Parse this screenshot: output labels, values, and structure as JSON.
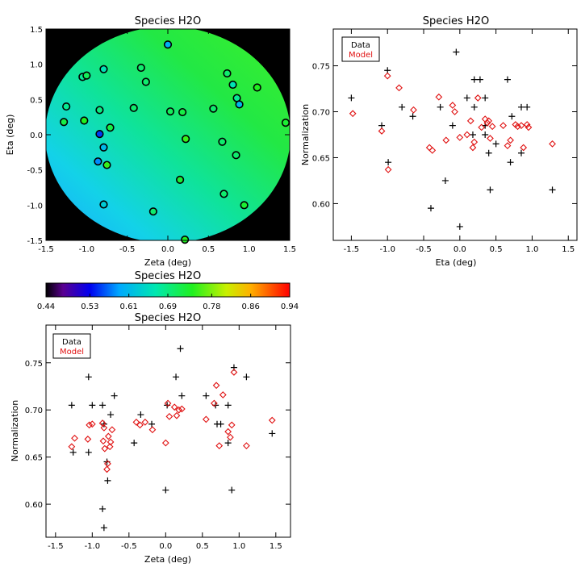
{
  "colors": {
    "data_marker": "#000000",
    "model_marker": "#e01010",
    "mask": "#000000"
  },
  "chart_data": [
    {
      "type": "scatter",
      "id": "map",
      "title": "Species H2O",
      "xlabel": "Zeta (deg)",
      "ylabel": "Eta (deg)",
      "xlim": [
        -1.5,
        1.5
      ],
      "ylim": [
        -1.5,
        1.5
      ],
      "xticks": [
        "-1.5",
        "-1.0",
        "-0.5",
        "0.0",
        "0.5",
        "1.0",
        "1.5"
      ],
      "yticks": [
        "-1.5",
        "-1.0",
        "-0.5",
        "0.0",
        "0.5",
        "1.0",
        "1.5"
      ],
      "background": "colormap gradient disk (model normalization) on black",
      "points": [
        {
          "zeta": 0.0,
          "eta": 1.28,
          "value": 0.6
        },
        {
          "zeta": -0.79,
          "eta": 0.93,
          "value": 0.66
        },
        {
          "zeta": -0.33,
          "eta": 0.95,
          "value": 0.7
        },
        {
          "zeta": -1.05,
          "eta": 0.82,
          "value": 0.68
        },
        {
          "zeta": -1.0,
          "eta": 0.84,
          "value": 0.71
        },
        {
          "zeta": -0.27,
          "eta": 0.75,
          "value": 0.7
        },
        {
          "zeta": 0.73,
          "eta": 0.87,
          "value": 0.7
        },
        {
          "zeta": 0.8,
          "eta": 0.71,
          "value": 0.66
        },
        {
          "zeta": 1.1,
          "eta": 0.67,
          "value": 0.74
        },
        {
          "zeta": 0.85,
          "eta": 0.52,
          "value": 0.68
        },
        {
          "zeta": 0.88,
          "eta": 0.43,
          "value": 0.61
        },
        {
          "zeta": -1.25,
          "eta": 0.4,
          "value": 0.68
        },
        {
          "zeta": -0.42,
          "eta": 0.38,
          "value": 0.7
        },
        {
          "zeta": -0.84,
          "eta": 0.35,
          "value": 0.69
        },
        {
          "zeta": 0.56,
          "eta": 0.37,
          "value": 0.7
        },
        {
          "zeta": 0.03,
          "eta": 0.33,
          "value": 0.71
        },
        {
          "zeta": 0.18,
          "eta": 0.32,
          "value": 0.72
        },
        {
          "zeta": -1.28,
          "eta": 0.18,
          "value": 0.72
        },
        {
          "zeta": -1.03,
          "eta": 0.2,
          "value": 0.74
        },
        {
          "zeta": -0.71,
          "eta": 0.1,
          "value": 0.72
        },
        {
          "zeta": 1.45,
          "eta": 0.17,
          "value": 0.73
        },
        {
          "zeta": -0.84,
          "eta": 0.01,
          "value": 0.55
        },
        {
          "zeta": 0.22,
          "eta": -0.06,
          "value": 0.75
        },
        {
          "zeta": 0.67,
          "eta": -0.1,
          "value": 0.7
        },
        {
          "zeta": -0.79,
          "eta": -0.18,
          "value": 0.61
        },
        {
          "zeta": 0.84,
          "eta": -0.29,
          "value": 0.7
        },
        {
          "zeta": -0.86,
          "eta": -0.38,
          "value": 0.58
        },
        {
          "zeta": -0.75,
          "eta": -0.43,
          "value": 0.75
        },
        {
          "zeta": 0.15,
          "eta": -0.64,
          "value": 0.73
        },
        {
          "zeta": 0.69,
          "eta": -0.84,
          "value": 0.7
        },
        {
          "zeta": -0.79,
          "eta": -0.99,
          "value": 0.63
        },
        {
          "zeta": 0.94,
          "eta": -1.0,
          "value": 0.73
        },
        {
          "zeta": -0.18,
          "eta": -1.09,
          "value": 0.7
        },
        {
          "zeta": 0.21,
          "eta": -1.49,
          "value": 0.74
        }
      ]
    },
    {
      "type": "scatter",
      "id": "eta",
      "title": "Species H2O",
      "xlabel": "Eta (deg)",
      "ylabel": "Normalization",
      "xlim": [
        -1.75,
        1.62
      ],
      "ylim": [
        0.56,
        0.79
      ],
      "xticks": [
        "-1.5",
        "-1.0",
        "-0.5",
        "0.0",
        "0.5",
        "1.0",
        "1.5"
      ],
      "yticks": [
        "0.60",
        "0.65",
        "0.70",
        "0.75"
      ],
      "legend": {
        "position": "top-left",
        "entries": [
          "Data",
          "Model"
        ]
      },
      "series": [
        {
          "name": "Data",
          "marker": "plus",
          "points": [
            [
              -1.5,
              0.715
            ],
            [
              -1.08,
              0.685
            ],
            [
              -1.0,
              0.745
            ],
            [
              -0.99,
              0.645
            ],
            [
              -0.8,
              0.705
            ],
            [
              -0.65,
              0.695
            ],
            [
              -0.4,
              0.595
            ],
            [
              -0.27,
              0.705
            ],
            [
              -0.2,
              0.625
            ],
            [
              -0.1,
              0.685
            ],
            [
              -0.05,
              0.765
            ],
            [
              0.0,
              0.575
            ],
            [
              0.1,
              0.715
            ],
            [
              0.18,
              0.675
            ],
            [
              0.2,
              0.735
            ],
            [
              0.2,
              0.705
            ],
            [
              0.28,
              0.735
            ],
            [
              0.35,
              0.715
            ],
            [
              0.35,
              0.685
            ],
            [
              0.35,
              0.675
            ],
            [
              0.4,
              0.655
            ],
            [
              0.42,
              0.615
            ],
            [
              0.5,
              0.665
            ],
            [
              0.66,
              0.735
            ],
            [
              0.7,
              0.645
            ],
            [
              0.72,
              0.695
            ],
            [
              0.85,
              0.655
            ],
            [
              0.85,
              0.705
            ],
            [
              0.93,
              0.705
            ],
            [
              1.28,
              0.615
            ]
          ]
        },
        {
          "name": "Model",
          "marker": "diamond",
          "points": [
            [
              -1.48,
              0.698
            ],
            [
              -1.08,
              0.679
            ],
            [
              -1.0,
              0.739
            ],
            [
              -0.99,
              0.637
            ],
            [
              -0.84,
              0.726
            ],
            [
              -0.64,
              0.702
            ],
            [
              -0.42,
              0.661
            ],
            [
              -0.38,
              0.658
            ],
            [
              -0.29,
              0.716
            ],
            [
              -0.19,
              0.669
            ],
            [
              -0.1,
              0.707
            ],
            [
              -0.07,
              0.7
            ],
            [
              0.0,
              0.672
            ],
            [
              0.1,
              0.675
            ],
            [
              0.15,
              0.69
            ],
            [
              0.18,
              0.661
            ],
            [
              0.2,
              0.667
            ],
            [
              0.25,
              0.715
            ],
            [
              0.3,
              0.683
            ],
            [
              0.35,
              0.692
            ],
            [
              0.38,
              0.688
            ],
            [
              0.4,
              0.69
            ],
            [
              0.42,
              0.671
            ],
            [
              0.45,
              0.684
            ],
            [
              0.6,
              0.685
            ],
            [
              0.66,
              0.663
            ],
            [
              0.7,
              0.669
            ],
            [
              0.77,
              0.686
            ],
            [
              0.8,
              0.684
            ],
            [
              0.85,
              0.685
            ],
            [
              0.88,
              0.661
            ],
            [
              0.93,
              0.686
            ],
            [
              0.95,
              0.683
            ],
            [
              1.28,
              0.665
            ]
          ]
        }
      ]
    },
    {
      "type": "scatter",
      "id": "zeta",
      "title": "Species H2O",
      "xlabel": "Zeta (deg)",
      "ylabel": "Normalization",
      "xlim": [
        -1.63,
        1.7
      ],
      "ylim": [
        0.565,
        0.79
      ],
      "xticks": [
        "-1.5",
        "-1.0",
        "-0.5",
        "0.0",
        "0.5",
        "1.0",
        "1.5"
      ],
      "yticks": [
        "0.60",
        "0.65",
        "0.70",
        "0.75"
      ],
      "legend": {
        "position": "top-left",
        "entries": [
          "Data",
          "Model"
        ]
      },
      "series": [
        {
          "name": "Data",
          "marker": "plus",
          "points": [
            [
              -1.28,
              0.705
            ],
            [
              -1.26,
              0.655
            ],
            [
              -1.05,
              0.735
            ],
            [
              -1.05,
              0.655
            ],
            [
              -1.0,
              0.705
            ],
            [
              -0.86,
              0.705
            ],
            [
              -0.86,
              0.595
            ],
            [
              -0.84,
              0.575
            ],
            [
              -0.84,
              0.685
            ],
            [
              -0.8,
              0.645
            ],
            [
              -0.79,
              0.625
            ],
            [
              -0.75,
              0.695
            ],
            [
              -0.7,
              0.715
            ],
            [
              -0.43,
              0.665
            ],
            [
              -0.34,
              0.695
            ],
            [
              -0.19,
              0.685
            ],
            [
              0.0,
              0.615
            ],
            [
              0.02,
              0.705
            ],
            [
              0.14,
              0.735
            ],
            [
              0.2,
              0.765
            ],
            [
              0.22,
              0.715
            ],
            [
              0.55,
              0.715
            ],
            [
              0.68,
              0.705
            ],
            [
              0.7,
              0.685
            ],
            [
              0.75,
              0.685
            ],
            [
              0.85,
              0.705
            ],
            [
              0.85,
              0.665
            ],
            [
              0.9,
              0.615
            ],
            [
              0.93,
              0.745
            ],
            [
              1.1,
              0.735
            ],
            [
              1.45,
              0.675
            ]
          ]
        },
        {
          "name": "Model",
          "marker": "diamond",
          "points": [
            [
              -1.28,
              0.661
            ],
            [
              -1.24,
              0.67
            ],
            [
              -1.06,
              0.669
            ],
            [
              -1.04,
              0.684
            ],
            [
              -1.0,
              0.685
            ],
            [
              -0.86,
              0.686
            ],
            [
              -0.85,
              0.667
            ],
            [
              -0.84,
              0.681
            ],
            [
              -0.83,
              0.659
            ],
            [
              -0.8,
              0.637
            ],
            [
              -0.79,
              0.643
            ],
            [
              -0.78,
              0.672
            ],
            [
              -0.76,
              0.661
            ],
            [
              -0.75,
              0.666
            ],
            [
              -0.73,
              0.679
            ],
            [
              -0.4,
              0.687
            ],
            [
              -0.35,
              0.684
            ],
            [
              -0.28,
              0.687
            ],
            [
              -0.18,
              0.679
            ],
            [
              0.0,
              0.665
            ],
            [
              0.05,
              0.693
            ],
            [
              0.03,
              0.707
            ],
            [
              0.12,
              0.703
            ],
            [
              0.15,
              0.694
            ],
            [
              0.18,
              0.7
            ],
            [
              0.22,
              0.701
            ],
            [
              0.55,
              0.69
            ],
            [
              0.66,
              0.707
            ],
            [
              0.69,
              0.726
            ],
            [
              0.73,
              0.662
            ],
            [
              0.78,
              0.716
            ],
            [
              0.85,
              0.677
            ],
            [
              0.88,
              0.671
            ],
            [
              0.9,
              0.684
            ],
            [
              0.93,
              0.74
            ],
            [
              1.1,
              0.662
            ],
            [
              1.45,
              0.689
            ]
          ]
        }
      ]
    }
  ],
  "colorbar": {
    "title": "Species H2O",
    "range": [
      0.44,
      0.94
    ],
    "ticks": [
      "0.44",
      "0.53",
      "0.61",
      "0.69",
      "0.78",
      "0.86",
      "0.94"
    ]
  }
}
